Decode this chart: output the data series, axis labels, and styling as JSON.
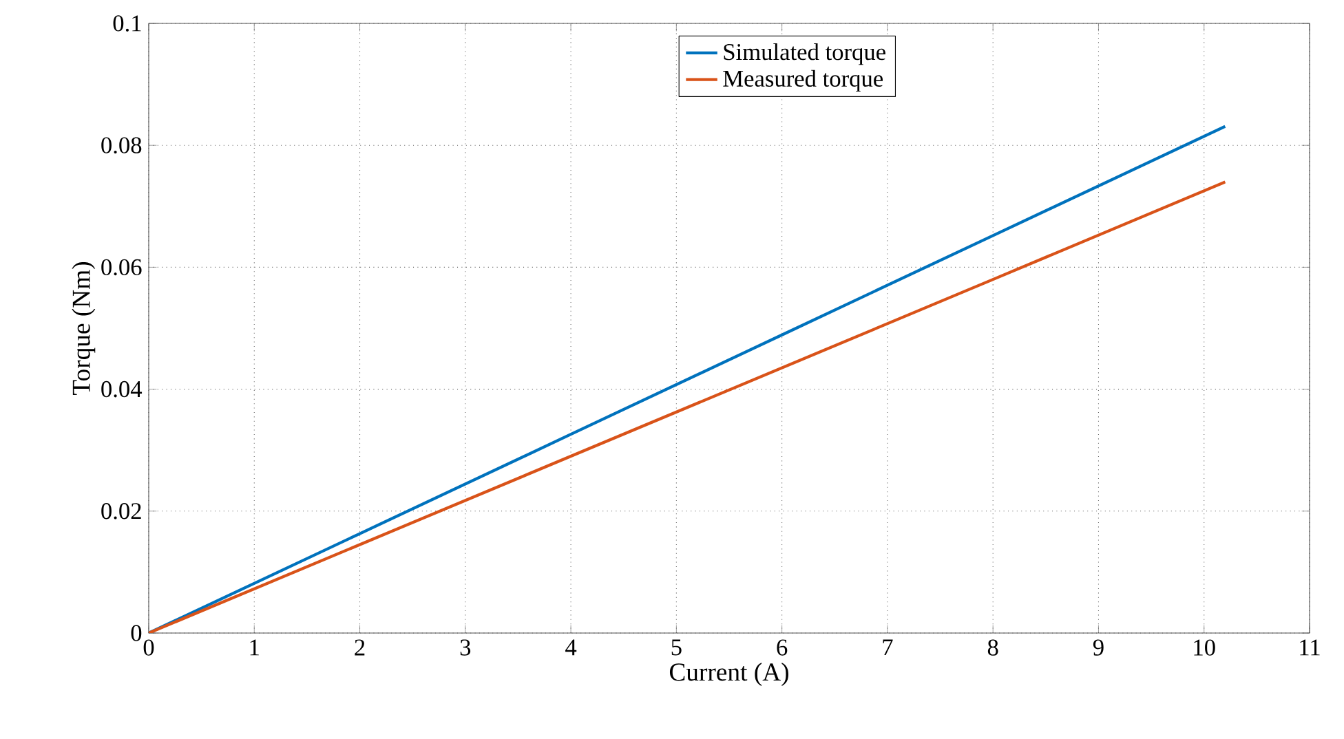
{
  "chart_data": {
    "type": "line",
    "xlabel": "Current (A)",
    "ylabel": "Torque (Nm)",
    "x": [
      0,
      2,
      4,
      6,
      8,
      10.2
    ],
    "series": [
      {
        "name": "Simulated torque",
        "color": "#0072bd",
        "values": [
          0,
          0.0163,
          0.0326,
          0.0489,
          0.0652,
          0.0831
        ]
      },
      {
        "name": "Measured torque",
        "color": "#d95319",
        "values": [
          0,
          0.0145,
          0.029,
          0.0435,
          0.058,
          0.074
        ]
      }
    ],
    "xlim": [
      0,
      11
    ],
    "ylim": [
      0,
      0.1
    ],
    "xticks": [
      0,
      1,
      2,
      3,
      4,
      5,
      6,
      7,
      8,
      9,
      10,
      11
    ],
    "yticks": [
      0,
      0.02,
      0.04,
      0.06,
      0.08,
      0.1
    ],
    "grid": true,
    "legend": "top",
    "marker": "none",
    "line_style": "solid"
  }
}
